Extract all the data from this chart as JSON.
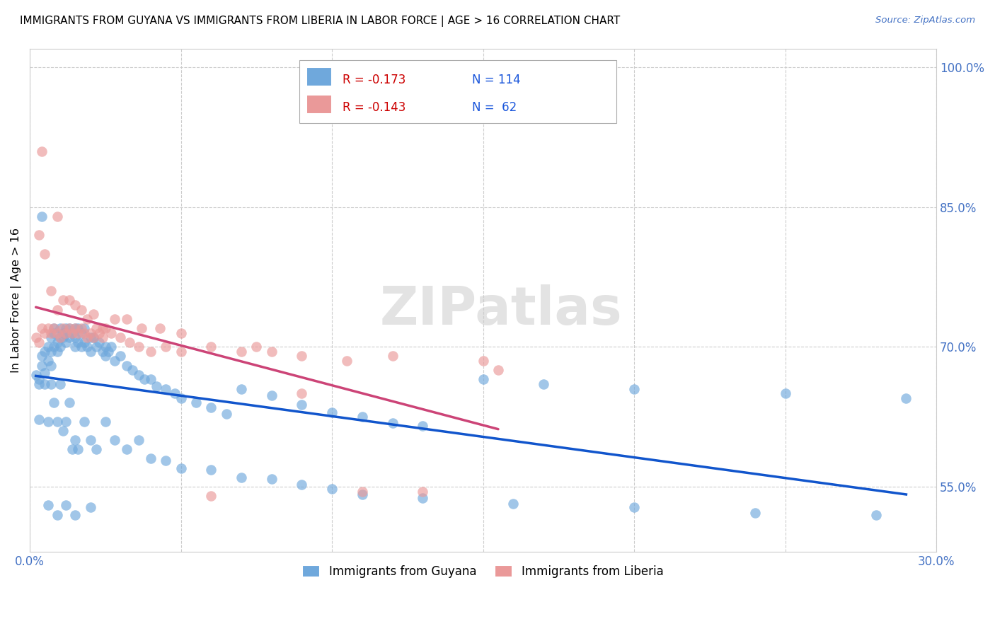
{
  "title": "IMMIGRANTS FROM GUYANA VS IMMIGRANTS FROM LIBERIA IN LABOR FORCE | AGE > 16 CORRELATION CHART",
  "source_text": "Source: ZipAtlas.com",
  "ylabel": "In Labor Force | Age > 16",
  "xlim": [
    0.0,
    0.3
  ],
  "ylim": [
    0.48,
    1.02
  ],
  "xticks": [
    0.0,
    0.05,
    0.1,
    0.15,
    0.2,
    0.25,
    0.3
  ],
  "xticklabels": [
    "0.0%",
    "",
    "",
    "",
    "",
    "",
    "30.0%"
  ],
  "yticks_right": [
    0.55,
    0.7,
    0.85,
    1.0
  ],
  "ytick_right_labels": [
    "55.0%",
    "70.0%",
    "85.0%",
    "100.0%"
  ],
  "guyana_color": "#6fa8dc",
  "liberia_color": "#ea9999",
  "guyana_line_color": "#1155cc",
  "liberia_line_color": "#cc4477",
  "liberia_line_dashed_after": 0.155,
  "legend_R_guyana": "R = -0.173",
  "legend_N_guyana": "N = 114",
  "legend_R_liberia": "R = -0.143",
  "legend_N_liberia": "N =  62",
  "background_color": "#ffffff",
  "grid_color": "#cccccc",
  "guyana_points_x": [
    0.002,
    0.003,
    0.004,
    0.004,
    0.005,
    0.005,
    0.006,
    0.006,
    0.007,
    0.007,
    0.007,
    0.008,
    0.008,
    0.008,
    0.009,
    0.009,
    0.01,
    0.01,
    0.01,
    0.011,
    0.011,
    0.012,
    0.012,
    0.012,
    0.013,
    0.013,
    0.014,
    0.015,
    0.015,
    0.015,
    0.016,
    0.016,
    0.017,
    0.017,
    0.018,
    0.018,
    0.019,
    0.02,
    0.02,
    0.021,
    0.022,
    0.023,
    0.024,
    0.025,
    0.025,
    0.026,
    0.027,
    0.028,
    0.03,
    0.032,
    0.034,
    0.036,
    0.038,
    0.04,
    0.042,
    0.045,
    0.048,
    0.05,
    0.055,
    0.06,
    0.065,
    0.07,
    0.08,
    0.09,
    0.1,
    0.11,
    0.12,
    0.13,
    0.15,
    0.17,
    0.2,
    0.25,
    0.29,
    0.003,
    0.004,
    0.005,
    0.006,
    0.007,
    0.008,
    0.009,
    0.01,
    0.011,
    0.012,
    0.013,
    0.014,
    0.015,
    0.016,
    0.018,
    0.02,
    0.022,
    0.025,
    0.028,
    0.032,
    0.036,
    0.04,
    0.045,
    0.05,
    0.06,
    0.07,
    0.08,
    0.09,
    0.1,
    0.11,
    0.13,
    0.16,
    0.2,
    0.24,
    0.28,
    0.003,
    0.006,
    0.009,
    0.012,
    0.015,
    0.02
  ],
  "guyana_points_y": [
    0.67,
    0.665,
    0.68,
    0.69,
    0.672,
    0.695,
    0.685,
    0.7,
    0.71,
    0.695,
    0.68,
    0.7,
    0.715,
    0.72,
    0.705,
    0.695,
    0.71,
    0.72,
    0.7,
    0.715,
    0.71,
    0.72,
    0.715,
    0.705,
    0.72,
    0.71,
    0.715,
    0.72,
    0.7,
    0.71,
    0.72,
    0.705,
    0.715,
    0.7,
    0.705,
    0.72,
    0.7,
    0.71,
    0.695,
    0.71,
    0.7,
    0.705,
    0.695,
    0.7,
    0.69,
    0.695,
    0.7,
    0.685,
    0.69,
    0.68,
    0.675,
    0.67,
    0.665,
    0.665,
    0.658,
    0.655,
    0.65,
    0.645,
    0.64,
    0.635,
    0.628,
    0.655,
    0.648,
    0.638,
    0.63,
    0.625,
    0.618,
    0.615,
    0.665,
    0.66,
    0.655,
    0.65,
    0.645,
    0.66,
    0.84,
    0.66,
    0.62,
    0.66,
    0.64,
    0.62,
    0.66,
    0.61,
    0.62,
    0.64,
    0.59,
    0.6,
    0.59,
    0.62,
    0.6,
    0.59,
    0.62,
    0.6,
    0.59,
    0.6,
    0.58,
    0.578,
    0.57,
    0.568,
    0.56,
    0.558,
    0.552,
    0.548,
    0.542,
    0.538,
    0.532,
    0.528,
    0.522,
    0.52,
    0.622,
    0.53,
    0.52,
    0.53,
    0.52,
    0.528
  ],
  "liberia_points_x": [
    0.002,
    0.003,
    0.004,
    0.005,
    0.006,
    0.007,
    0.008,
    0.009,
    0.01,
    0.011,
    0.012,
    0.013,
    0.014,
    0.015,
    0.016,
    0.017,
    0.018,
    0.019,
    0.02,
    0.021,
    0.022,
    0.023,
    0.024,
    0.025,
    0.027,
    0.03,
    0.033,
    0.036,
    0.04,
    0.045,
    0.05,
    0.06,
    0.07,
    0.08,
    0.09,
    0.105,
    0.12,
    0.15,
    0.003,
    0.005,
    0.007,
    0.009,
    0.011,
    0.013,
    0.015,
    0.017,
    0.019,
    0.021,
    0.024,
    0.028,
    0.032,
    0.037,
    0.043,
    0.05,
    0.06,
    0.075,
    0.09,
    0.11,
    0.13,
    0.155,
    0.004,
    0.009
  ],
  "liberia_points_y": [
    0.71,
    0.705,
    0.72,
    0.715,
    0.72,
    0.715,
    0.72,
    0.715,
    0.71,
    0.72,
    0.715,
    0.72,
    0.715,
    0.72,
    0.715,
    0.72,
    0.715,
    0.71,
    0.715,
    0.71,
    0.72,
    0.715,
    0.71,
    0.72,
    0.715,
    0.71,
    0.705,
    0.7,
    0.695,
    0.7,
    0.695,
    0.7,
    0.695,
    0.695,
    0.69,
    0.685,
    0.69,
    0.685,
    0.82,
    0.8,
    0.76,
    0.74,
    0.75,
    0.75,
    0.745,
    0.74,
    0.73,
    0.735,
    0.72,
    0.73,
    0.73,
    0.72,
    0.72,
    0.715,
    0.54,
    0.7,
    0.65,
    0.545,
    0.545,
    0.675,
    0.91,
    0.84
  ]
}
